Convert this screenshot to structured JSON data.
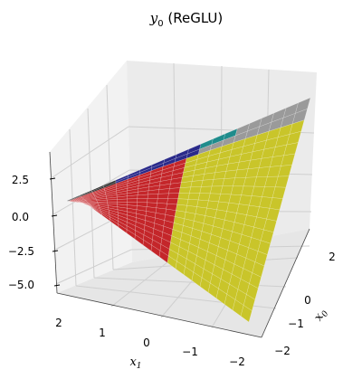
{
  "chart_data": {
    "type": "surface3d",
    "title_main": "y",
    "title_sub": "0",
    "title_rest": " (ReGLU)",
    "xlabel": {
      "main": "x",
      "sub": "0"
    },
    "ylabel": {
      "main": "x",
      "sub": "1"
    },
    "x_range": [
      -2,
      2
    ],
    "y_range": [
      -2,
      2
    ],
    "z_range": [
      -6,
      4
    ],
    "x_ticks": [
      2,
      1,
      0,
      -1,
      -2
    ],
    "x_tick_labels": [
      "2",
      "1",
      "0",
      "−1",
      "−2"
    ],
    "x0_ticks": [
      2,
      0,
      -1,
      -2
    ],
    "x0_tick_labels": [
      "2",
      "0",
      "−1",
      "−2"
    ],
    "z_ticks": [
      2.5,
      0.0,
      -2.5,
      -5.0
    ],
    "z_tick_labels": [
      "2.5",
      "0.0",
      "−2.5",
      "−5.0"
    ],
    "grid": true,
    "surface_function": "y0 = (w00*x0 + w01*x1) * max(0, v0*x0 + v1*x1)",
    "region_colors": {
      "both_positive": "#c9c52a",
      "neg_gate_pos_value": "#c4262a",
      "neg_value_neg_gate": "#2c2c2c",
      "upper_left": "#2a2a8a",
      "upper_right_a": "#1f8c8c",
      "upper_right_b": "#9a9a9a"
    }
  }
}
